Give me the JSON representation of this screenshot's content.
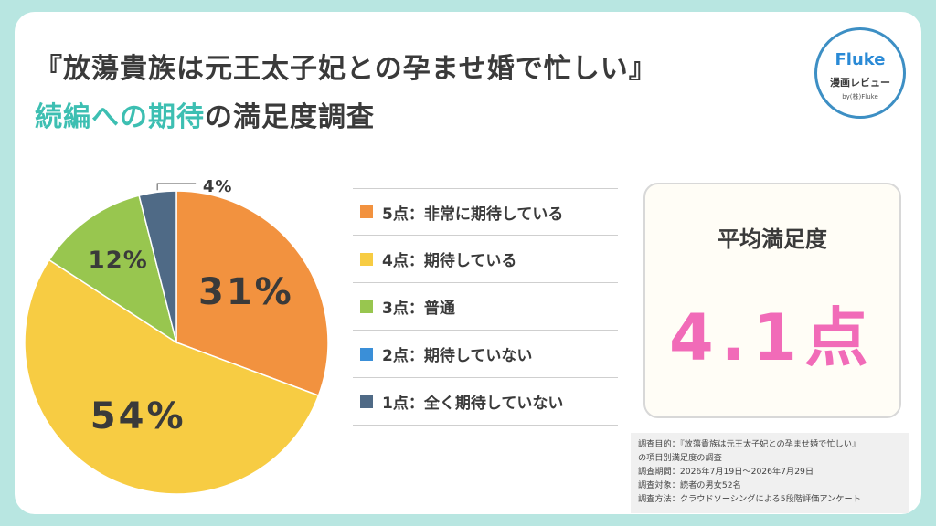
{
  "title": {
    "line1": "『放蕩貴族は元王太子妃との孕ませ婚で忙しい』",
    "line2_highlight": "続編への期待",
    "line2_rest": "の満足度調査"
  },
  "logo": {
    "brand": "Fluke",
    "sub": "漫画レビュー",
    "by": "by(株)Fluke"
  },
  "chart_data": {
    "type": "pie",
    "title": "",
    "slices": [
      {
        "name": "5点：非常に期待している",
        "value": 31,
        "label": "31%",
        "color": "#f2923f"
      },
      {
        "name": "4点：期待している",
        "value": 54,
        "label": "54%",
        "color": "#f7cc43"
      },
      {
        "name": "3点：普通",
        "value": 12,
        "label": "12%",
        "color": "#98c64f"
      },
      {
        "name": "2点：期待していない",
        "value": 0,
        "label": "",
        "color": "#3a8fd8"
      },
      {
        "name": "1点：全く期待していない",
        "value": 4,
        "label": "4%",
        "color": "#4f6a86"
      }
    ],
    "legend": "right"
  },
  "average": {
    "title": "平均満足度",
    "value": "4.1点"
  },
  "notes": [
    "調査目的：『放蕩貴族は元王太子妃との孕ませ婚で忙しい』",
    "の項目別満足度の調査",
    "調査期間：2026年7月19日〜2026年7月29日",
    "調査対象：読者の男女52名",
    "調査方法：クラウドソーシングによる5段階評価アンケート"
  ]
}
